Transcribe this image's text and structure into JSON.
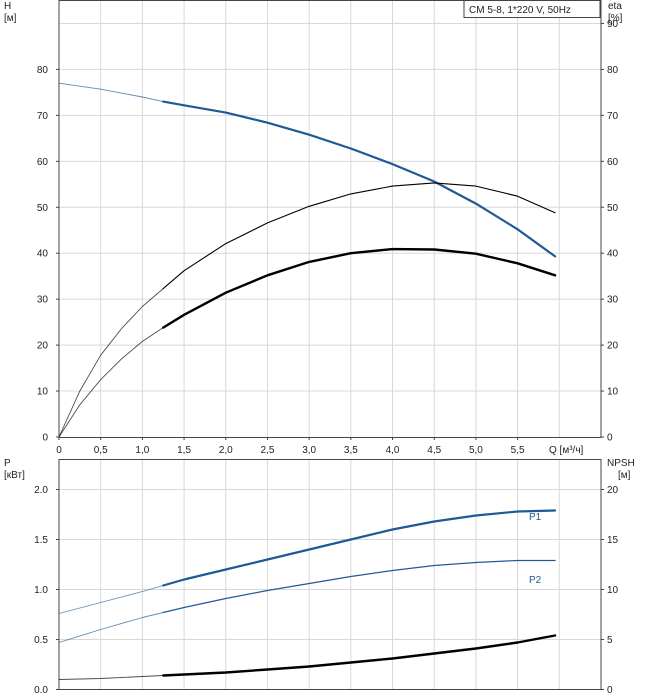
{
  "colors": {
    "blue": "#1f5a96",
    "black": "#000000",
    "grid": "#d8d8d8"
  },
  "chart_data": [
    {
      "type": "line",
      "title": "CM 5-8, 1*220 V, 50Hz",
      "xlabel": "Q [м³/ч]",
      "ylabel_left": "H",
      "ylabel_left_unit": "[м]",
      "ylabel_right": "eta",
      "ylabel_right_unit": "[%]",
      "xlim": [
        0,
        6.5
      ],
      "ylim_left": [
        0,
        95
      ],
      "ylim_right": [
        0,
        95
      ],
      "xticks": [
        "0",
        "0,5",
        "1,0",
        "1,5",
        "2,0",
        "2,5",
        "3,0",
        "3,5",
        "4,0",
        "4,5",
        "5,0",
        "5,5"
      ],
      "yticks_left": [
        "0",
        "10",
        "20",
        "30",
        "40",
        "50",
        "60",
        "70",
        "80"
      ],
      "yticks_right": [
        "0",
        "10",
        "20",
        "30",
        "40",
        "50",
        "60",
        "70",
        "80",
        "90"
      ],
      "grid": true,
      "series": [
        {
          "style": "blue-thick",
          "color": "#1f5a96",
          "x": [
            0,
            0.5,
            1.0,
            1.25
          ],
          "y": [
            77,
            75.7,
            74,
            73
          ],
          "dim": true
        },
        {
          "style": "blue-thick",
          "color": "#1f5a96",
          "x": [
            1.25,
            1.5,
            2.0,
            2.5,
            3.0,
            3.5,
            4.0,
            4.5,
            5.0,
            5.5,
            5.95
          ],
          "y": [
            73,
            72.2,
            70.6,
            68.4,
            65.8,
            62.8,
            59.4,
            55.6,
            50.8,
            45.2,
            39.3
          ]
        },
        {
          "style": "black-thin",
          "color": "#000000",
          "x": [
            0,
            0.25,
            0.5,
            0.75,
            1.0,
            1.25
          ],
          "y": [
            0,
            10,
            17.8,
            23.6,
            28.4,
            32.3
          ],
          "dim": true
        },
        {
          "style": "black-thin",
          "color": "#000000",
          "x": [
            1.25,
            1.5,
            2.0,
            2.5,
            3.0,
            3.5,
            4.0,
            4.5,
            5.0,
            5.5,
            5.95
          ],
          "y": [
            32.3,
            36.2,
            42.1,
            46.6,
            50.2,
            52.9,
            54.6,
            55.3,
            54.6,
            52.4,
            48.8
          ]
        },
        {
          "style": "black-thick",
          "color": "#000000",
          "x": [
            0,
            0.25,
            0.5,
            0.75,
            1.0,
            1.25
          ],
          "y": [
            0,
            7,
            12.5,
            17,
            20.8,
            23.8
          ],
          "dim": true
        },
        {
          "style": "black-thick",
          "color": "#000000",
          "x": [
            1.25,
            1.5,
            2.0,
            2.5,
            3.0,
            3.5,
            4.0,
            4.5,
            5.0,
            5.5,
            5.95
          ],
          "y": [
            23.8,
            26.6,
            31.4,
            35.2,
            38.1,
            40.0,
            40.9,
            40.8,
            39.9,
            37.8,
            35.2
          ]
        }
      ]
    },
    {
      "type": "line",
      "xlim": [
        0,
        6.5
      ],
      "ylabel_left": "P",
      "ylabel_left_unit": "[кВт]",
      "ylabel_right": "NPSH",
      "ylabel_right_unit": "[м]",
      "ylim_left": [
        0,
        2.3
      ],
      "ylim_right": [
        0,
        23
      ],
      "yticks_left": [
        "0.0",
        "0.5",
        "1.0",
        "1.5",
        "2.0"
      ],
      "yticks_right": [
        "0",
        "5",
        "10",
        "15",
        "20"
      ],
      "grid": true,
      "series": [
        {
          "name": "P1",
          "style": "blue-thick",
          "color": "#1f5a96",
          "x": [
            0,
            0.5,
            1.0,
            1.25
          ],
          "y": [
            0.76,
            0.87,
            0.98,
            1.04
          ],
          "dim": true
        },
        {
          "name": "P1",
          "style": "blue-thick",
          "color": "#1f5a96",
          "x": [
            1.25,
            1.5,
            2.0,
            2.5,
            3.0,
            3.5,
            4.0,
            4.5,
            5.0,
            5.5,
            5.95
          ],
          "y": [
            1.04,
            1.1,
            1.2,
            1.3,
            1.4,
            1.5,
            1.6,
            1.68,
            1.74,
            1.78,
            1.79
          ]
        },
        {
          "name": "P2",
          "style": "blue-thin",
          "color": "#1f5a96",
          "x": [
            0,
            0.5,
            1.0,
            1.25
          ],
          "y": [
            0.47,
            0.6,
            0.72,
            0.77
          ],
          "dim": true
        },
        {
          "name": "P2",
          "style": "blue-thin",
          "color": "#1f5a96",
          "x": [
            1.25,
            1.5,
            2.0,
            2.5,
            3.0,
            3.5,
            4.0,
            4.5,
            5.0,
            5.5,
            5.95
          ],
          "y": [
            0.77,
            0.82,
            0.91,
            0.99,
            1.06,
            1.13,
            1.19,
            1.24,
            1.27,
            1.29,
            1.29
          ]
        },
        {
          "style": "black-thick",
          "color": "#000000",
          "axis": "right",
          "x": [
            0,
            0.5,
            1.0,
            1.25
          ],
          "y": [
            1.0,
            1.1,
            1.3,
            1.4
          ],
          "dim": true
        },
        {
          "style": "black-thick",
          "color": "#000000",
          "axis": "right",
          "x": [
            1.25,
            1.5,
            2.0,
            2.5,
            3.0,
            3.5,
            4.0,
            4.5,
            5.0,
            5.5,
            5.95
          ],
          "y": [
            1.4,
            1.5,
            1.7,
            2.0,
            2.3,
            2.7,
            3.1,
            3.6,
            4.1,
            4.7,
            5.4
          ]
        }
      ],
      "legend_labels": [
        "P1",
        "P2"
      ]
    }
  ]
}
